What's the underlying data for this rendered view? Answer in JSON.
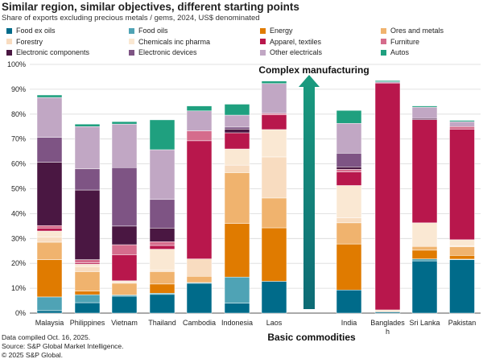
{
  "header": {
    "title": "Similar region, similar objectives, different starting points",
    "subtitle": "Share of exports excluding precious metals / gems, 2024, US$ denominated"
  },
  "footer": {
    "line1": "Data compiled Oct. 16, 2025.",
    "line2": "Source: S&P Global Market Intelligence.",
    "line3": "© 2025 S&P Global."
  },
  "chart_data": {
    "type": "bar",
    "stacked": true,
    "title": "Similar region, similar objectives, different starting points",
    "subtitle": "Share of exports excluding precious metals / gems, 2024, US$ denominated",
    "ylabel": "",
    "ylim": [
      0,
      100
    ],
    "yticks": [
      "0%",
      "10%",
      "20%",
      "30%",
      "40%",
      "50%",
      "60%",
      "70%",
      "80%",
      "90%",
      "100%"
    ],
    "categories": [
      "Malaysia",
      "Philippines",
      "Vietnam",
      "Thailand",
      "Cambodia",
      "Indonesia",
      "Laos",
      "India",
      "Bangladesh",
      "Sri Lanka",
      "Pakistan"
    ],
    "series": [
      {
        "name": "Food ex oils",
        "color": "#006b8a",
        "values": [
          1.0,
          4.2,
          6.8,
          7.5,
          12.0,
          4.0,
          12.8,
          9.3,
          0.5,
          21.0,
          21.5
        ]
      },
      {
        "name": "Food oils",
        "color": "#4fa3b5",
        "values": [
          5.5,
          3.2,
          0.5,
          0.5,
          0.3,
          10.5,
          0.0,
          0.0,
          0.0,
          0.8,
          0.2
        ]
      },
      {
        "name": "Energy",
        "color": "#e07b00",
        "values": [
          15.0,
          1.5,
          0.0,
          3.7,
          0.0,
          21.5,
          21.5,
          18.5,
          0.0,
          3.5,
          1.5
        ]
      },
      {
        "name": "Ores and metals",
        "color": "#f0b36e",
        "values": [
          7.0,
          7.8,
          4.7,
          5.0,
          2.5,
          20.5,
          12.0,
          8.5,
          0.3,
          1.5,
          3.5
        ]
      },
      {
        "name": "Forestry",
        "color": "#f8dcc0",
        "values": [
          2.0,
          2.0,
          0.5,
          0.5,
          7.0,
          3.0,
          16.5,
          2.0,
          0.5,
          0.0,
          0.3
        ]
      },
      {
        "name": "Chemicals inc pharma",
        "color": "#fae8d3",
        "values": [
          2.5,
          1.0,
          0.5,
          8.5,
          0.0,
          6.5,
          11.0,
          13.0,
          0.0,
          9.5,
          2.5
        ]
      },
      {
        "name": "Apparel, textiles",
        "color": "#b8174c",
        "values": [
          1.2,
          0.5,
          10.5,
          1.5,
          47.5,
          6.5,
          6.0,
          5.5,
          91.2,
          41.5,
          44.5
        ]
      },
      {
        "name": "Furniture",
        "color": "#d56c8c",
        "values": [
          1.0,
          1.3,
          4.0,
          1.5,
          4.0,
          0.0,
          0.5,
          1.0,
          0.0,
          0.0,
          1.0
        ]
      },
      {
        "name": "Electronic components",
        "color": "#4a1742",
        "values": [
          25.5,
          28.0,
          7.5,
          5.5,
          0.0,
          1.5,
          0.0,
          1.0,
          0.0,
          0.5,
          0.0
        ]
      },
      {
        "name": "Electronic devices",
        "color": "#7e5484",
        "values": [
          10.0,
          8.5,
          23.5,
          11.5,
          0.0,
          0.8,
          0.0,
          5.5,
          0.0,
          0.0,
          0.0
        ]
      },
      {
        "name": "Other electricals",
        "color": "#c1a7c4",
        "values": [
          16.0,
          17.0,
          17.5,
          20.0,
          8.0,
          4.8,
          12.0,
          12.0,
          0.5,
          4.5,
          2.0
        ]
      },
      {
        "name": "Autos",
        "color": "#1fa07f",
        "values": [
          1.0,
          1.0,
          1.0,
          12.0,
          2.0,
          4.4,
          1.0,
          5.2,
          0.5,
          0.5,
          0.5
        ]
      }
    ],
    "annotations": {
      "top": "Complex manufacturing",
      "bottom": "Basic commodities"
    }
  }
}
